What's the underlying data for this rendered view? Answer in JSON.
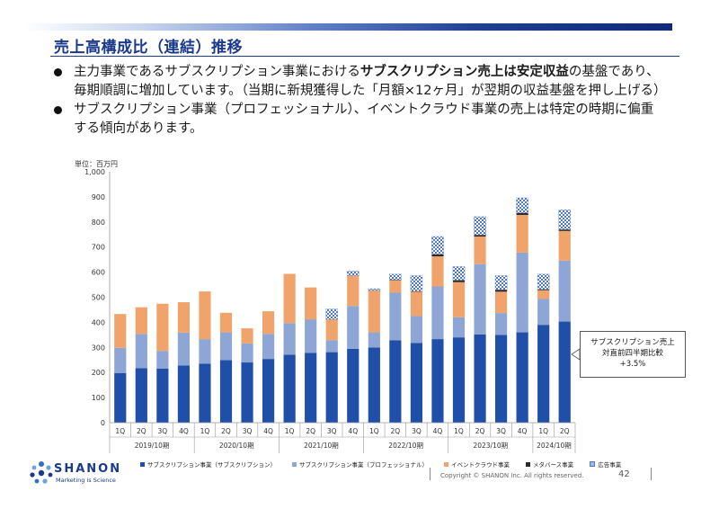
{
  "slide": {
    "title": "売上高構成比（連結）推移",
    "bullets": [
      {
        "parts": [
          {
            "text": "主力事業であるサブスクリプション事業における",
            "bold": false
          },
          {
            "text": "サブスクリプション売上は安定収益",
            "bold": true
          },
          {
            "text": "の基盤であり、毎期順調に増加しています。（当期に新規獲得した「月額×12ヶ月」が翌期の収益基盤を押し上げる）",
            "bold": false
          }
        ]
      },
      {
        "parts": [
          {
            "text": "サブスクリプション事業（プロフェッショナル）、イベントクラウド事業の売上は特定の時期に偏重する傾向があります。",
            "bold": false
          }
        ]
      }
    ],
    "unit_label": "単位：百万円",
    "callout_lines": [
      "サブスクリプション売上",
      "対直前四半期比較",
      "+3.5%"
    ],
    "company": {
      "name": "SHANON",
      "tagline": "Marketing is Science"
    },
    "copyright": "Copyright © SHANON Inc. All rights reserved.",
    "page_number": "42"
  },
  "chart_data": {
    "type": "bar",
    "stacked": true,
    "ylim": [
      0,
      1000
    ],
    "yticks": [
      0,
      100,
      200,
      300,
      400,
      500,
      600,
      700,
      800,
      900,
      1000
    ],
    "ytick_labels": [
      "0",
      "100",
      "200",
      "300",
      "400",
      "500",
      "600",
      "700",
      "800",
      "900",
      "1,000"
    ],
    "categories": [
      "1Q",
      "2Q",
      "3Q",
      "4Q",
      "1Q",
      "2Q",
      "3Q",
      "4Q",
      "1Q",
      "2Q",
      "3Q",
      "4Q",
      "1Q",
      "2Q",
      "3Q",
      "4Q",
      "1Q",
      "2Q",
      "3Q",
      "4Q",
      "1Q",
      "2Q"
    ],
    "groups": [
      {
        "label": "2019/10期",
        "count": 4
      },
      {
        "label": "2020/10期",
        "count": 4
      },
      {
        "label": "2021/10期",
        "count": 4
      },
      {
        "label": "2022/10期",
        "count": 4
      },
      {
        "label": "2023/10期",
        "count": 4
      },
      {
        "label": "2024/10期",
        "count": 2
      }
    ],
    "series": [
      {
        "name": "サブスクリプション事業（サブスクリプション）",
        "color": "#1f4fa8",
        "values": [
          198,
          217,
          216,
          228,
          235,
          249,
          240,
          254,
          271,
          278,
          281,
          294,
          300,
          328,
          318,
          333,
          340,
          352,
          350,
          360,
          390,
          403
        ]
      },
      {
        "name": "サブスクリプション事業（プロフェッショナル）",
        "color": "#8ea6d6",
        "values": [
          100,
          137,
          70,
          131,
          98,
          111,
          76,
          100,
          126,
          134,
          48,
          171,
          60,
          190,
          107,
          210,
          80,
          280,
          87,
          318,
          103,
          243
        ]
      },
      {
        "name": "イベントクラウド事業",
        "color": "#f0a36a",
        "values": [
          135,
          106,
          188,
          121,
          190,
          78,
          60,
          90,
          196,
          127,
          82,
          121,
          167,
          50,
          97,
          120,
          140,
          110,
          85,
          150,
          35,
          118
        ]
      },
      {
        "name": "メタバース事業",
        "color": "#2a2a2a",
        "values": [
          0,
          0,
          0,
          0,
          0,
          0,
          0,
          0,
          0,
          0,
          0,
          0,
          0,
          2,
          2,
          8,
          8,
          6,
          8,
          8,
          4,
          6
        ]
      },
      {
        "name": "広告事業",
        "color": "#9fbbe0",
        "values": [
          0,
          0,
          0,
          0,
          0,
          0,
          0,
          0,
          0,
          0,
          42,
          18,
          7,
          22,
          62,
          71,
          54,
          73,
          56,
          60,
          60,
          78
        ]
      }
    ]
  }
}
